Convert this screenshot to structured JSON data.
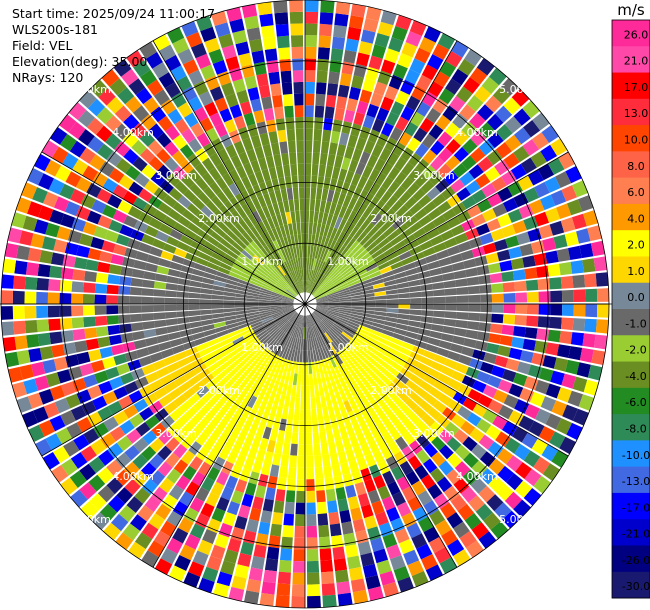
{
  "info": {
    "start_time": "Start time: 2025/09/24 11:00:17",
    "station": "WLS200s-181",
    "field": "Field: VEL",
    "elevation": "Elevation(deg): 35.00",
    "nrays": "NRays: 120"
  },
  "chart_data": {
    "type": "heatmap",
    "projection": "polar",
    "field": "VEL",
    "unit": "m/s",
    "n_rays": 120,
    "range_max_km": 5.0,
    "range_rings_km": [
      1,
      2,
      3,
      4,
      5
    ],
    "range_labels": [
      "1.00km",
      "2.00km",
      "3.00km",
      "4.00km",
      "5.00km"
    ],
    "colorbar": {
      "title": "m/s",
      "ticks": [
        "26.0",
        "21.0",
        "17.0",
        "13.0",
        "10.0",
        "8.0",
        "6.0",
        "4.0",
        "2.0",
        "1.0",
        "0.0",
        "-1.0",
        "-2.0",
        "-4.0",
        "-6.0",
        "-8.0",
        "-10.0",
        "-13.0",
        "-17.0",
        "-21.0",
        "-26.0",
        "-30.0"
      ],
      "bins": [
        {
          "low": 26,
          "high": 30,
          "color": "#ff2a9a"
        },
        {
          "low": 21,
          "high": 26,
          "color": "#ff48a8"
        },
        {
          "low": 17,
          "high": 21,
          "color": "#ff0000"
        },
        {
          "low": 13,
          "high": 17,
          "color": "#ff2d3c"
        },
        {
          "low": 10,
          "high": 13,
          "color": "#ff4500"
        },
        {
          "low": 8,
          "high": 10,
          "color": "#ff6347"
        },
        {
          "low": 6,
          "high": 8,
          "color": "#ff7f50"
        },
        {
          "low": 4,
          "high": 6,
          "color": "#ff9900"
        },
        {
          "low": 2,
          "high": 4,
          "color": "#ffff00"
        },
        {
          "low": 1,
          "high": 2,
          "color": "#ffd700"
        },
        {
          "low": 0,
          "high": 1,
          "color": "#778899"
        },
        {
          "low": -1,
          "high": 0,
          "color": "#696969"
        },
        {
          "low": -2,
          "high": -1,
          "color": "#9acd32"
        },
        {
          "low": -4,
          "high": -2,
          "color": "#6b8e23"
        },
        {
          "low": -6,
          "high": -4,
          "color": "#228b22"
        },
        {
          "low": -8,
          "high": -6,
          "color": "#2e8b57"
        },
        {
          "low": -10,
          "high": -8,
          "color": "#1e90ff"
        },
        {
          "low": -13,
          "high": -10,
          "color": "#4169e1"
        },
        {
          "low": -17,
          "high": -13,
          "color": "#0000ff"
        },
        {
          "low": -21,
          "high": -17,
          "color": "#0000cd"
        },
        {
          "low": -26,
          "high": -21,
          "color": "#000080"
        },
        {
          "low": -30,
          "high": -26,
          "color": "#191970"
        }
      ]
    },
    "velocity_structure": {
      "near_field_max_km": 2.9,
      "north_sector_deg": [
        -70,
        70
      ],
      "north_velocity_ms": -2.5,
      "south_sector_deg": [
        110,
        250
      ],
      "south_velocity_ms": 2.5,
      "east_west_velocity_ms": -0.3,
      "far_field_km": [
        2.9,
        5.0
      ],
      "far_field": "noise"
    }
  }
}
